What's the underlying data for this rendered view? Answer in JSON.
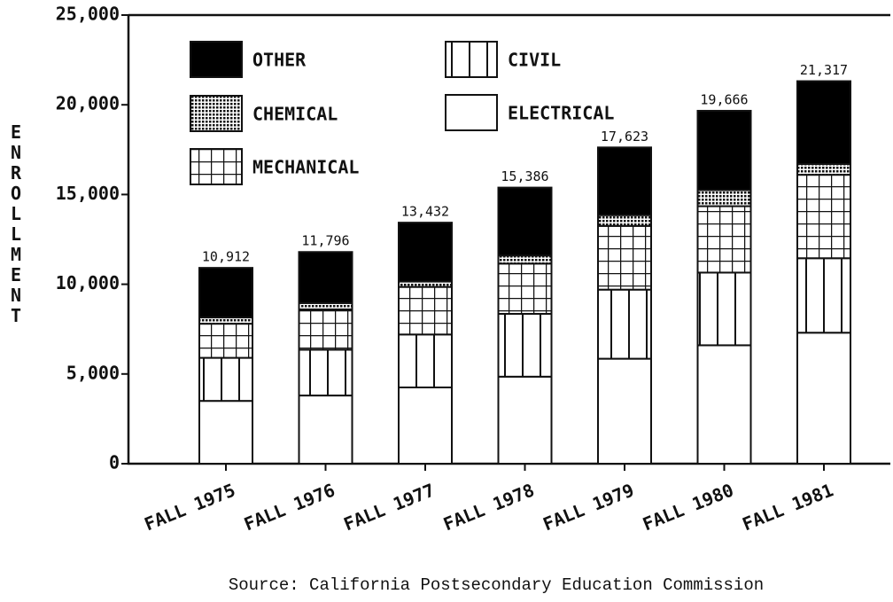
{
  "chart_data": {
    "type": "stacked_bar",
    "y_axis_label": "ENROLLMENT",
    "source": "Source: California Postsecondary Education Commission",
    "categories": [
      "FALL 1975",
      "FALL 1976",
      "FALL 1977",
      "FALL 1978",
      "FALL 1979",
      "FALL 1980",
      "FALL 1981"
    ],
    "series": [
      {
        "name": "ELECTRICAL",
        "color": "#ffffff",
        "pattern": "none",
        "values": [
          3500,
          3800,
          4250,
          4850,
          5850,
          6600,
          7300
        ]
      },
      {
        "name": "CIVIL",
        "color": "#ffffff",
        "pattern": "vlines",
        "values": [
          2400,
          2550,
          2950,
          3500,
          3850,
          4050,
          4150
        ]
      },
      {
        "name": "MECHANICAL",
        "color": "#ffffff",
        "pattern": "grid",
        "values": [
          1900,
          2250,
          2650,
          2800,
          3550,
          3700,
          4650
        ]
      },
      {
        "name": "CHEMICAL",
        "color": "#ffffff",
        "pattern": "dots",
        "values": [
          350,
          350,
          300,
          450,
          600,
          900,
          600
        ]
      },
      {
        "name": "OTHER",
        "color": "#000000",
        "pattern": "solid",
        "values": [
          2762,
          2846,
          3282,
          3786,
          3773,
          4416,
          4617
        ]
      }
    ],
    "totals": {
      "values": [
        10912,
        11796,
        13432,
        15386,
        17623,
        19666,
        21317
      ],
      "value_labels": [
        "10,912",
        "11,796",
        "13,432",
        "15,386",
        "17,623",
        "19,666",
        "21,317"
      ]
    },
    "ylim": [
      0,
      25000
    ],
    "yticks": [
      0,
      {
        "value": 5000,
        "label": "5,000"
      },
      {
        "value": 10000,
        "label": "10,000"
      },
      {
        "value": 15000,
        "label": "15,000"
      },
      {
        "value": 20000,
        "label": "20,000"
      },
      {
        "value": 25000,
        "label": "25,000"
      }
    ]
  }
}
